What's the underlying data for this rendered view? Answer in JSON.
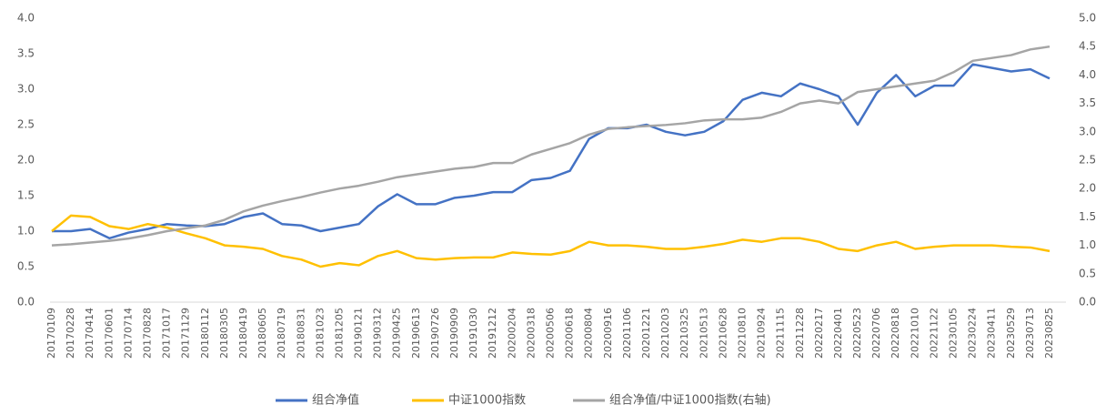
{
  "chart_data": {
    "type": "line",
    "categories": [
      "20170109",
      "20170228",
      "20170414",
      "20170601",
      "20170714",
      "20170828",
      "20171017",
      "20171129",
      "20180112",
      "20180305",
      "20180419",
      "20180605",
      "20180719",
      "20180831",
      "20181023",
      "20181205",
      "20190121",
      "20190312",
      "20190425",
      "20190613",
      "20190726",
      "20190909",
      "20191030",
      "20191212",
      "20200204",
      "20200318",
      "20200506",
      "20200618",
      "20200804",
      "20200916",
      "20201106",
      "20201221",
      "20210203",
      "20210325",
      "20210513",
      "20210628",
      "20210810",
      "20210924",
      "20211115",
      "20211228",
      "20220217",
      "20220401",
      "20220523",
      "20220706",
      "20220818",
      "20221010",
      "20221122",
      "20230105",
      "20230224",
      "20230411",
      "20230529",
      "20230713",
      "20230825"
    ],
    "series": [
      {
        "name": "组合净值",
        "color": "#4472c4",
        "values": [
          1.0,
          1.0,
          1.03,
          0.9,
          0.98,
          1.03,
          1.1,
          1.08,
          1.07,
          1.1,
          1.2,
          1.25,
          1.1,
          1.08,
          1.0,
          1.05,
          1.1,
          1.35,
          1.52,
          1.38,
          1.38,
          1.47,
          1.5,
          1.55,
          1.55,
          1.72,
          1.75,
          1.85,
          2.3,
          2.45,
          2.45,
          2.5,
          2.4,
          2.35,
          2.4,
          2.55,
          2.85,
          2.95,
          2.9,
          3.08,
          3.0,
          2.9,
          2.5,
          2.95,
          3.2,
          2.9,
          3.05,
          3.05,
          3.35,
          3.3,
          3.25,
          3.28,
          3.15
        ]
      },
      {
        "name": "中证1000指数",
        "color": "#ffc000",
        "values": [
          1.0,
          1.22,
          1.2,
          1.07,
          1.03,
          1.1,
          1.05,
          0.97,
          0.9,
          0.8,
          0.78,
          0.75,
          0.65,
          0.6,
          0.5,
          0.55,
          0.52,
          0.65,
          0.72,
          0.62,
          0.6,
          0.62,
          0.63,
          0.63,
          0.7,
          0.68,
          0.67,
          0.72,
          0.85,
          0.8,
          0.8,
          0.78,
          0.75,
          0.75,
          0.78,
          0.82,
          0.88,
          0.85,
          0.9,
          0.9,
          0.85,
          0.75,
          0.72,
          0.8,
          0.85,
          0.75,
          0.78,
          0.8,
          0.8,
          0.8,
          0.78,
          0.77,
          0.72
        ]
      },
      {
        "name": "组合净值/中证1000指数(右轴)",
        "color": "#a5a5a5",
        "axis": "y2",
        "values": [
          1.0,
          1.02,
          1.05,
          1.08,
          1.12,
          1.18,
          1.25,
          1.3,
          1.35,
          1.45,
          1.6,
          1.7,
          1.78,
          1.85,
          1.93,
          2.0,
          2.05,
          2.12,
          2.2,
          2.25,
          2.3,
          2.35,
          2.38,
          2.45,
          2.45,
          2.6,
          2.7,
          2.8,
          2.95,
          3.05,
          3.08,
          3.1,
          3.12,
          3.15,
          3.2,
          3.22,
          3.22,
          3.25,
          3.35,
          3.5,
          3.55,
          3.5,
          3.7,
          3.75,
          3.8,
          3.85,
          3.9,
          4.05,
          4.25,
          4.3,
          4.35,
          4.45,
          4.5
        ]
      }
    ],
    "ylim": [
      0,
      4
    ],
    "yticks": [
      {
        "value": 0,
        "label": "0.0"
      },
      0.5,
      {
        "value": 1,
        "label": "1.0"
      },
      1.5,
      {
        "value": 2,
        "label": "2.0"
      },
      2.5,
      {
        "value": 3,
        "label": "3.0"
      },
      3.5,
      {
        "value": 4,
        "label": "4.0"
      }
    ],
    "y2lim": [
      0,
      5
    ],
    "y2ticks": [
      {
        "value": 0,
        "label": "0.0"
      },
      0.5,
      {
        "value": 1,
        "label": "1.0"
      },
      1.5,
      {
        "value": 2,
        "label": "2.0"
      },
      2.5,
      {
        "value": 3,
        "label": "3.0"
      },
      3.5,
      {
        "value": 4,
        "label": "4.0"
      },
      4.5,
      {
        "value": 5,
        "label": "5.0"
      }
    ],
    "legend": "bottom"
  }
}
